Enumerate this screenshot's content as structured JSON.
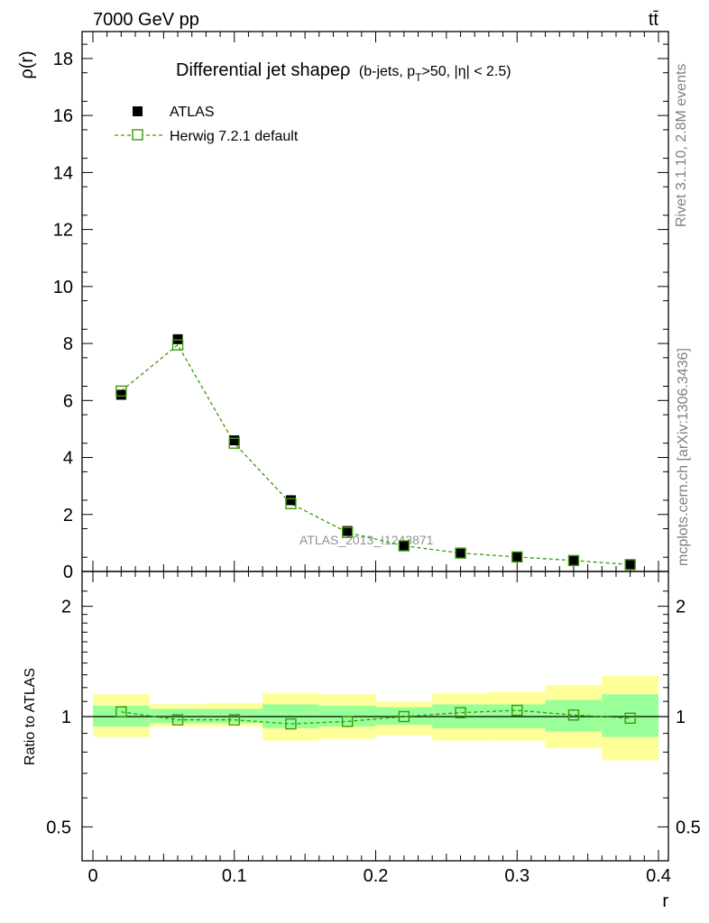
{
  "header": {
    "energy_label": "7000 GeV pp",
    "process_label": "tt̄"
  },
  "side_labels": {
    "rivet": "Rivet 3.1.10,  2.8M events",
    "mcplots": "mcplots.cern.ch [arXiv:1306.3436]"
  },
  "watermark": "ATLAS_2013_I1243871",
  "chart_data": [
    {
      "type": "scatter",
      "panel": "main",
      "title": "Differential jet shapeρ",
      "subtitle_parts": [
        "(b-jets, p",
        "T",
        ">50, |η| < 2.5)"
      ],
      "xlabel": "r",
      "ylabel": "ρ(r)",
      "xlim": [
        0,
        0.4
      ],
      "ylim": [
        0,
        19
      ],
      "yticks": [
        "0",
        "2",
        "4",
        "6",
        "8",
        "10",
        "12",
        "14",
        "16",
        "18"
      ],
      "legend_placement": "top-left",
      "series": [
        {
          "name": "ATLAS",
          "marker": "filled-square",
          "color": "#000000",
          "x": [
            0.02,
            0.06,
            0.1,
            0.14,
            0.18,
            0.22,
            0.26,
            0.3,
            0.34,
            0.38
          ],
          "y": [
            6.2,
            8.15,
            4.6,
            2.5,
            1.42,
            0.9,
            0.63,
            0.49,
            0.38,
            0.24
          ]
        },
        {
          "name": "Herwig 7.2.1 default",
          "marker": "open-square",
          "line": "dashed",
          "color": "#3a9a0a",
          "x": [
            0.02,
            0.06,
            0.1,
            0.14,
            0.18,
            0.22,
            0.26,
            0.3,
            0.34,
            0.38
          ],
          "y": [
            6.33,
            7.95,
            4.5,
            2.38,
            1.37,
            0.9,
            0.645,
            0.51,
            0.385,
            0.24
          ]
        }
      ]
    },
    {
      "type": "scatter",
      "panel": "ratio",
      "xlabel": "r",
      "ylabel": "Ratio to ATLAS",
      "xlim": [
        0,
        0.4
      ],
      "ylim": [
        0.4,
        2.4
      ],
      "xticks": [
        "0",
        "0.1",
        "0.2",
        "0.3",
        "0.4"
      ],
      "yticks": [
        "0.5",
        "1",
        "2"
      ],
      "bands": {
        "bin_edges": [
          0.0,
          0.04,
          0.08,
          0.12,
          0.16,
          0.2,
          0.24,
          0.28,
          0.32,
          0.36,
          0.4
        ],
        "stat_low": [
          0.94,
          0.96,
          0.96,
          0.93,
          0.94,
          0.95,
          0.93,
          0.93,
          0.91,
          0.88
        ],
        "stat_high": [
          1.07,
          1.05,
          1.05,
          1.08,
          1.07,
          1.06,
          1.08,
          1.08,
          1.11,
          1.15
        ],
        "total_low": [
          0.88,
          0.94,
          0.94,
          0.86,
          0.87,
          0.89,
          0.86,
          0.86,
          0.82,
          0.76
        ],
        "total_high": [
          1.15,
          1.08,
          1.09,
          1.16,
          1.15,
          1.1,
          1.16,
          1.17,
          1.22,
          1.29
        ],
        "stat_color": "#99ff99",
        "total_color": "#ffff99"
      },
      "series": [
        {
          "name": "Herwig 7.2.1 default",
          "color": "#3a9a0a",
          "x": [
            0.02,
            0.06,
            0.1,
            0.14,
            0.18,
            0.22,
            0.26,
            0.3,
            0.34,
            0.38
          ],
          "y": [
            1.03,
            0.98,
            0.98,
            0.955,
            0.97,
            1.0,
            1.025,
            1.04,
            1.01,
            0.99
          ]
        }
      ]
    }
  ]
}
